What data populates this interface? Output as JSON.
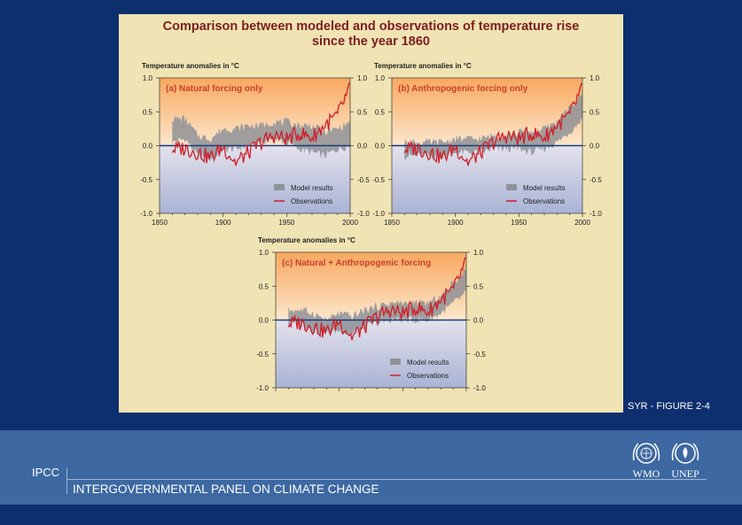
{
  "figure": {
    "title_line1": "Comparison between modeled and observations of temperature rise",
    "title_line2": "since the year 1860",
    "caption": "SYR - FIGURE 2-4"
  },
  "footer": {
    "org_short": "IPCC",
    "org_full": "INTERGOVERNMENTAL PANEL ON CLIMATE CHANGE",
    "logo_wmo": "WMO",
    "logo_unep": "UNEP"
  },
  "colors": {
    "observations": "#cc1f2a",
    "model_band": "#8f9298",
    "zero_line": "#173a78",
    "title": "#7b1e1e",
    "panel_title": "#c9402a"
  },
  "chart_data": [
    {
      "type": "line",
      "id": "a",
      "panel_title": "(a) Natural forcing only",
      "ylabel": "Temperature anomalies in °C",
      "ylim": [
        -1.0,
        1.0
      ],
      "yticks": [
        "1.0",
        "0.5",
        "0.0",
        "-0.5",
        "-1.0"
      ],
      "xlim": [
        1850,
        2000
      ],
      "xticks": [
        "1850",
        "1900",
        "1950",
        "2000"
      ],
      "legend": [
        "Model results",
        "Observations"
      ],
      "legend_position": "lower-right",
      "x": [
        1860,
        1870,
        1880,
        1890,
        1900,
        1910,
        1920,
        1930,
        1940,
        1950,
        1960,
        1970,
        1980,
        1990,
        2000
      ],
      "observations": [
        -0.05,
        -0.04,
        -0.1,
        -0.18,
        -0.02,
        -0.25,
        -0.1,
        0.05,
        0.15,
        0.1,
        0.18,
        0.12,
        0.3,
        0.45,
        0.85
      ],
      "model_low": [
        0.05,
        0.1,
        -0.15,
        -0.2,
        -0.05,
        -0.05,
        0.0,
        0.05,
        0.1,
        0.05,
        -0.05,
        -0.1,
        -0.15,
        -0.05,
        0.0
      ],
      "model_high": [
        0.4,
        0.4,
        0.15,
        0.1,
        0.25,
        0.25,
        0.3,
        0.3,
        0.35,
        0.35,
        0.3,
        0.3,
        0.2,
        0.25,
        0.35
      ]
    },
    {
      "type": "line",
      "id": "b",
      "panel_title": "(b) Anthropogenic forcing only",
      "ylabel": "Temperature anomalies in °C",
      "ylim": [
        -1.0,
        1.0
      ],
      "yticks": [
        "1.0",
        "0.5",
        "0.0",
        "-0.5",
        "-1.0"
      ],
      "xlim": [
        1850,
        2000
      ],
      "xticks": [
        "1850",
        "1900",
        "1950",
        "2000"
      ],
      "legend": [
        "Model results",
        "Observations"
      ],
      "legend_position": "lower-right",
      "x": [
        1860,
        1870,
        1880,
        1890,
        1900,
        1910,
        1920,
        1930,
        1940,
        1950,
        1960,
        1970,
        1980,
        1990,
        2000
      ],
      "observations": [
        -0.05,
        -0.04,
        -0.1,
        -0.18,
        -0.02,
        -0.25,
        -0.1,
        0.05,
        0.15,
        0.1,
        0.18,
        0.12,
        0.3,
        0.45,
        0.85
      ],
      "model_low": [
        -0.15,
        -0.15,
        -0.15,
        -0.15,
        -0.1,
        -0.1,
        -0.1,
        -0.05,
        -0.05,
        -0.05,
        -0.1,
        -0.05,
        0.05,
        0.2,
        0.4
      ],
      "model_high": [
        0.05,
        0.05,
        0.05,
        0.05,
        0.1,
        0.1,
        0.1,
        0.15,
        0.15,
        0.2,
        0.2,
        0.25,
        0.35,
        0.55,
        0.75
      ]
    },
    {
      "type": "line",
      "id": "c",
      "panel_title": "(c) Natural + Anthropogenic forcing",
      "ylabel": "Temperature anomalies in °C",
      "ylim": [
        -1.0,
        1.0
      ],
      "yticks": [
        "1.0",
        "0.5",
        "0.0",
        "-0.5",
        "-1.0"
      ],
      "xlim": [
        1850,
        2000
      ],
      "xticks": [],
      "legend": [
        "Model results",
        "Observations"
      ],
      "legend_position": "lower-right",
      "x": [
        1860,
        1870,
        1880,
        1890,
        1900,
        1910,
        1920,
        1930,
        1940,
        1950,
        1960,
        1970,
        1980,
        1990,
        2000
      ],
      "observations": [
        -0.05,
        -0.04,
        -0.1,
        -0.18,
        -0.02,
        -0.25,
        -0.1,
        0.05,
        0.15,
        0.1,
        0.18,
        0.12,
        0.3,
        0.45,
        0.85
      ],
      "model_low": [
        -0.05,
        -0.05,
        -0.15,
        -0.2,
        -0.15,
        -0.2,
        -0.1,
        -0.05,
        0.0,
        0.0,
        0.0,
        0.0,
        0.1,
        0.25,
        0.4
      ],
      "model_high": [
        0.15,
        0.15,
        0.1,
        0.0,
        0.1,
        0.05,
        0.15,
        0.2,
        0.25,
        0.25,
        0.25,
        0.25,
        0.35,
        0.55,
        0.75
      ]
    }
  ]
}
